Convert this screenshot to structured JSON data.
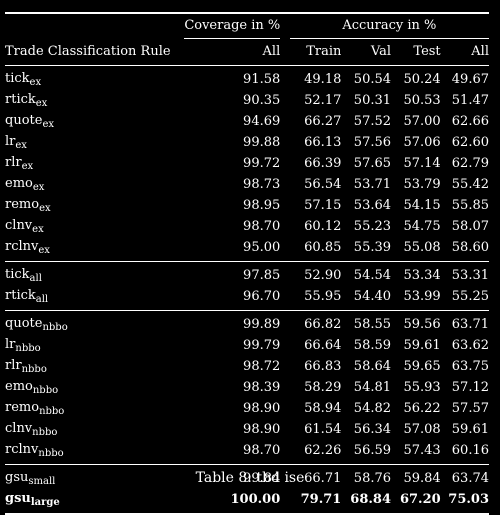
{
  "header": {
    "coverage_group": "Coverage in %",
    "accuracy_group": "Accuracy in %",
    "rule_col": "Trade Classification Rule",
    "cols": [
      "All",
      "Train",
      "Val",
      "Test",
      "All"
    ]
  },
  "groups": [
    {
      "rows": [
        {
          "base": "tick",
          "sub": "ex",
          "vals": [
            "91.58",
            "49.18",
            "50.54",
            "50.24",
            "49.67"
          ]
        },
        {
          "base": "rtick",
          "sub": "ex",
          "vals": [
            "90.35",
            "52.17",
            "50.31",
            "50.53",
            "51.47"
          ]
        },
        {
          "base": "quote",
          "sub": "ex",
          "vals": [
            "94.69",
            "66.27",
            "57.52",
            "57.00",
            "62.66"
          ]
        },
        {
          "base": "lr",
          "sub": "ex",
          "vals": [
            "99.88",
            "66.13",
            "57.56",
            "57.06",
            "62.60"
          ]
        },
        {
          "base": "rlr",
          "sub": "ex",
          "vals": [
            "99.72",
            "66.39",
            "57.65",
            "57.14",
            "62.79"
          ]
        },
        {
          "base": "emo",
          "sub": "ex",
          "vals": [
            "98.73",
            "56.54",
            "53.71",
            "53.79",
            "55.42"
          ]
        },
        {
          "base": "remo",
          "sub": "ex",
          "vals": [
            "98.95",
            "57.15",
            "53.64",
            "54.15",
            "55.85"
          ]
        },
        {
          "base": "clnv",
          "sub": "ex",
          "vals": [
            "98.70",
            "60.12",
            "55.23",
            "54.75",
            "58.07"
          ]
        },
        {
          "base": "rclnv",
          "sub": "ex",
          "vals": [
            "95.00",
            "60.85",
            "55.39",
            "55.08",
            "58.60"
          ]
        }
      ]
    },
    {
      "rows": [
        {
          "base": "tick",
          "sub": "all",
          "vals": [
            "97.85",
            "52.90",
            "54.54",
            "53.34",
            "53.31"
          ]
        },
        {
          "base": "rtick",
          "sub": "all",
          "vals": [
            "96.70",
            "55.95",
            "54.40",
            "53.99",
            "55.25"
          ]
        }
      ]
    },
    {
      "rows": [
        {
          "base": "quote",
          "sub": "nbbo",
          "vals": [
            "99.89",
            "66.82",
            "58.55",
            "59.56",
            "63.71"
          ]
        },
        {
          "base": "lr",
          "sub": "nbbo",
          "vals": [
            "99.79",
            "66.64",
            "58.59",
            "59.61",
            "63.62"
          ]
        },
        {
          "base": "rlr",
          "sub": "nbbo",
          "vals": [
            "98.72",
            "66.83",
            "58.64",
            "59.65",
            "63.75"
          ]
        },
        {
          "base": "emo",
          "sub": "nbbo",
          "vals": [
            "98.39",
            "58.29",
            "54.81",
            "55.93",
            "57.12"
          ]
        },
        {
          "base": "remo",
          "sub": "nbbo",
          "vals": [
            "98.90",
            "58.94",
            "54.82",
            "56.22",
            "57.57"
          ]
        },
        {
          "base": "clnv",
          "sub": "nbbo",
          "vals": [
            "98.90",
            "61.54",
            "56.34",
            "57.08",
            "59.61"
          ]
        },
        {
          "base": "rclnv",
          "sub": "nbbo",
          "vals": [
            "98.70",
            "62.26",
            "56.59",
            "57.43",
            "60.16"
          ]
        }
      ]
    },
    {
      "rows": [
        {
          "base": "gsu",
          "sub": "small",
          "vals": [
            "99.84",
            "66.71",
            "58.76",
            "59.84",
            "63.74"
          ]
        },
        {
          "base": "gsu",
          "sub": "large",
          "vals": [
            "100.00",
            "79.71",
            "68.84",
            "67.20",
            "75.03"
          ],
          "bold": true
        }
      ]
    }
  ],
  "caption": "Table 8: tbd ise"
}
